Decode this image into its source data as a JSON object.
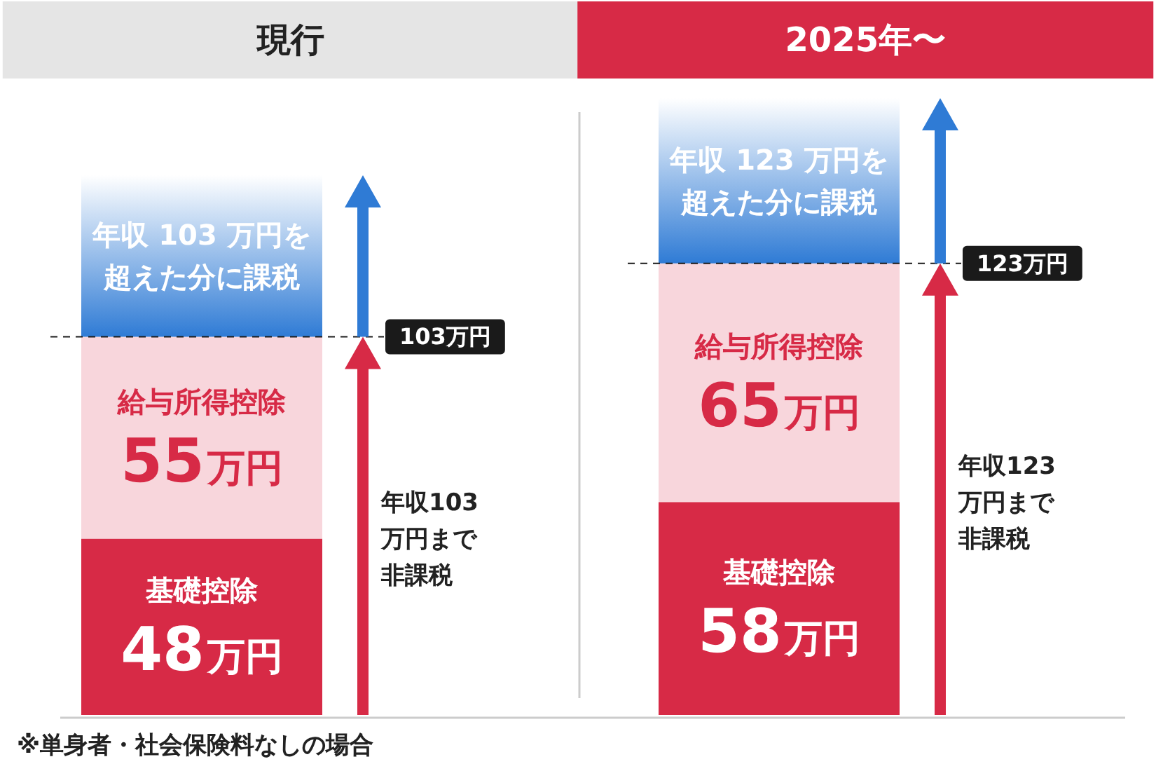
{
  "chart_data": {
    "type": "bar",
    "stacked": true,
    "categories": [
      "現行",
      "2025年〜"
    ],
    "series": [
      {
        "name": "基礎控除",
        "color": "#d72a46",
        "values": [
          48,
          58
        ],
        "value_labels": [
          "48万円",
          "58万円"
        ]
      },
      {
        "name": "給与所得控除",
        "color": "#f8d6dc",
        "values": [
          55,
          65
        ],
        "value_labels": [
          "55万円",
          "65万円"
        ]
      },
      {
        "color": "#2f7bd5",
        "values": [
          44,
          45
        ],
        "value_labels": [
          "年収 103 万円を超えた分に課税",
          "年収 123 万円を超えた分に課税"
        ]
      }
    ],
    "ref_lines": [
      {
        "axis": "y",
        "value": 103,
        "label": "103万円",
        "color": "#1a1a1a",
        "line_style": "dashed"
      },
      {
        "axis": "y",
        "value": 123,
        "label": "123万円",
        "color": "#1a1a1a",
        "line_style": "dashed"
      }
    ],
    "annotations": [
      "年収103 万円まで非課税",
      "年収123万円まで非課税",
      "※単身者・社会保険料なしの場合"
    ]
  }
}
